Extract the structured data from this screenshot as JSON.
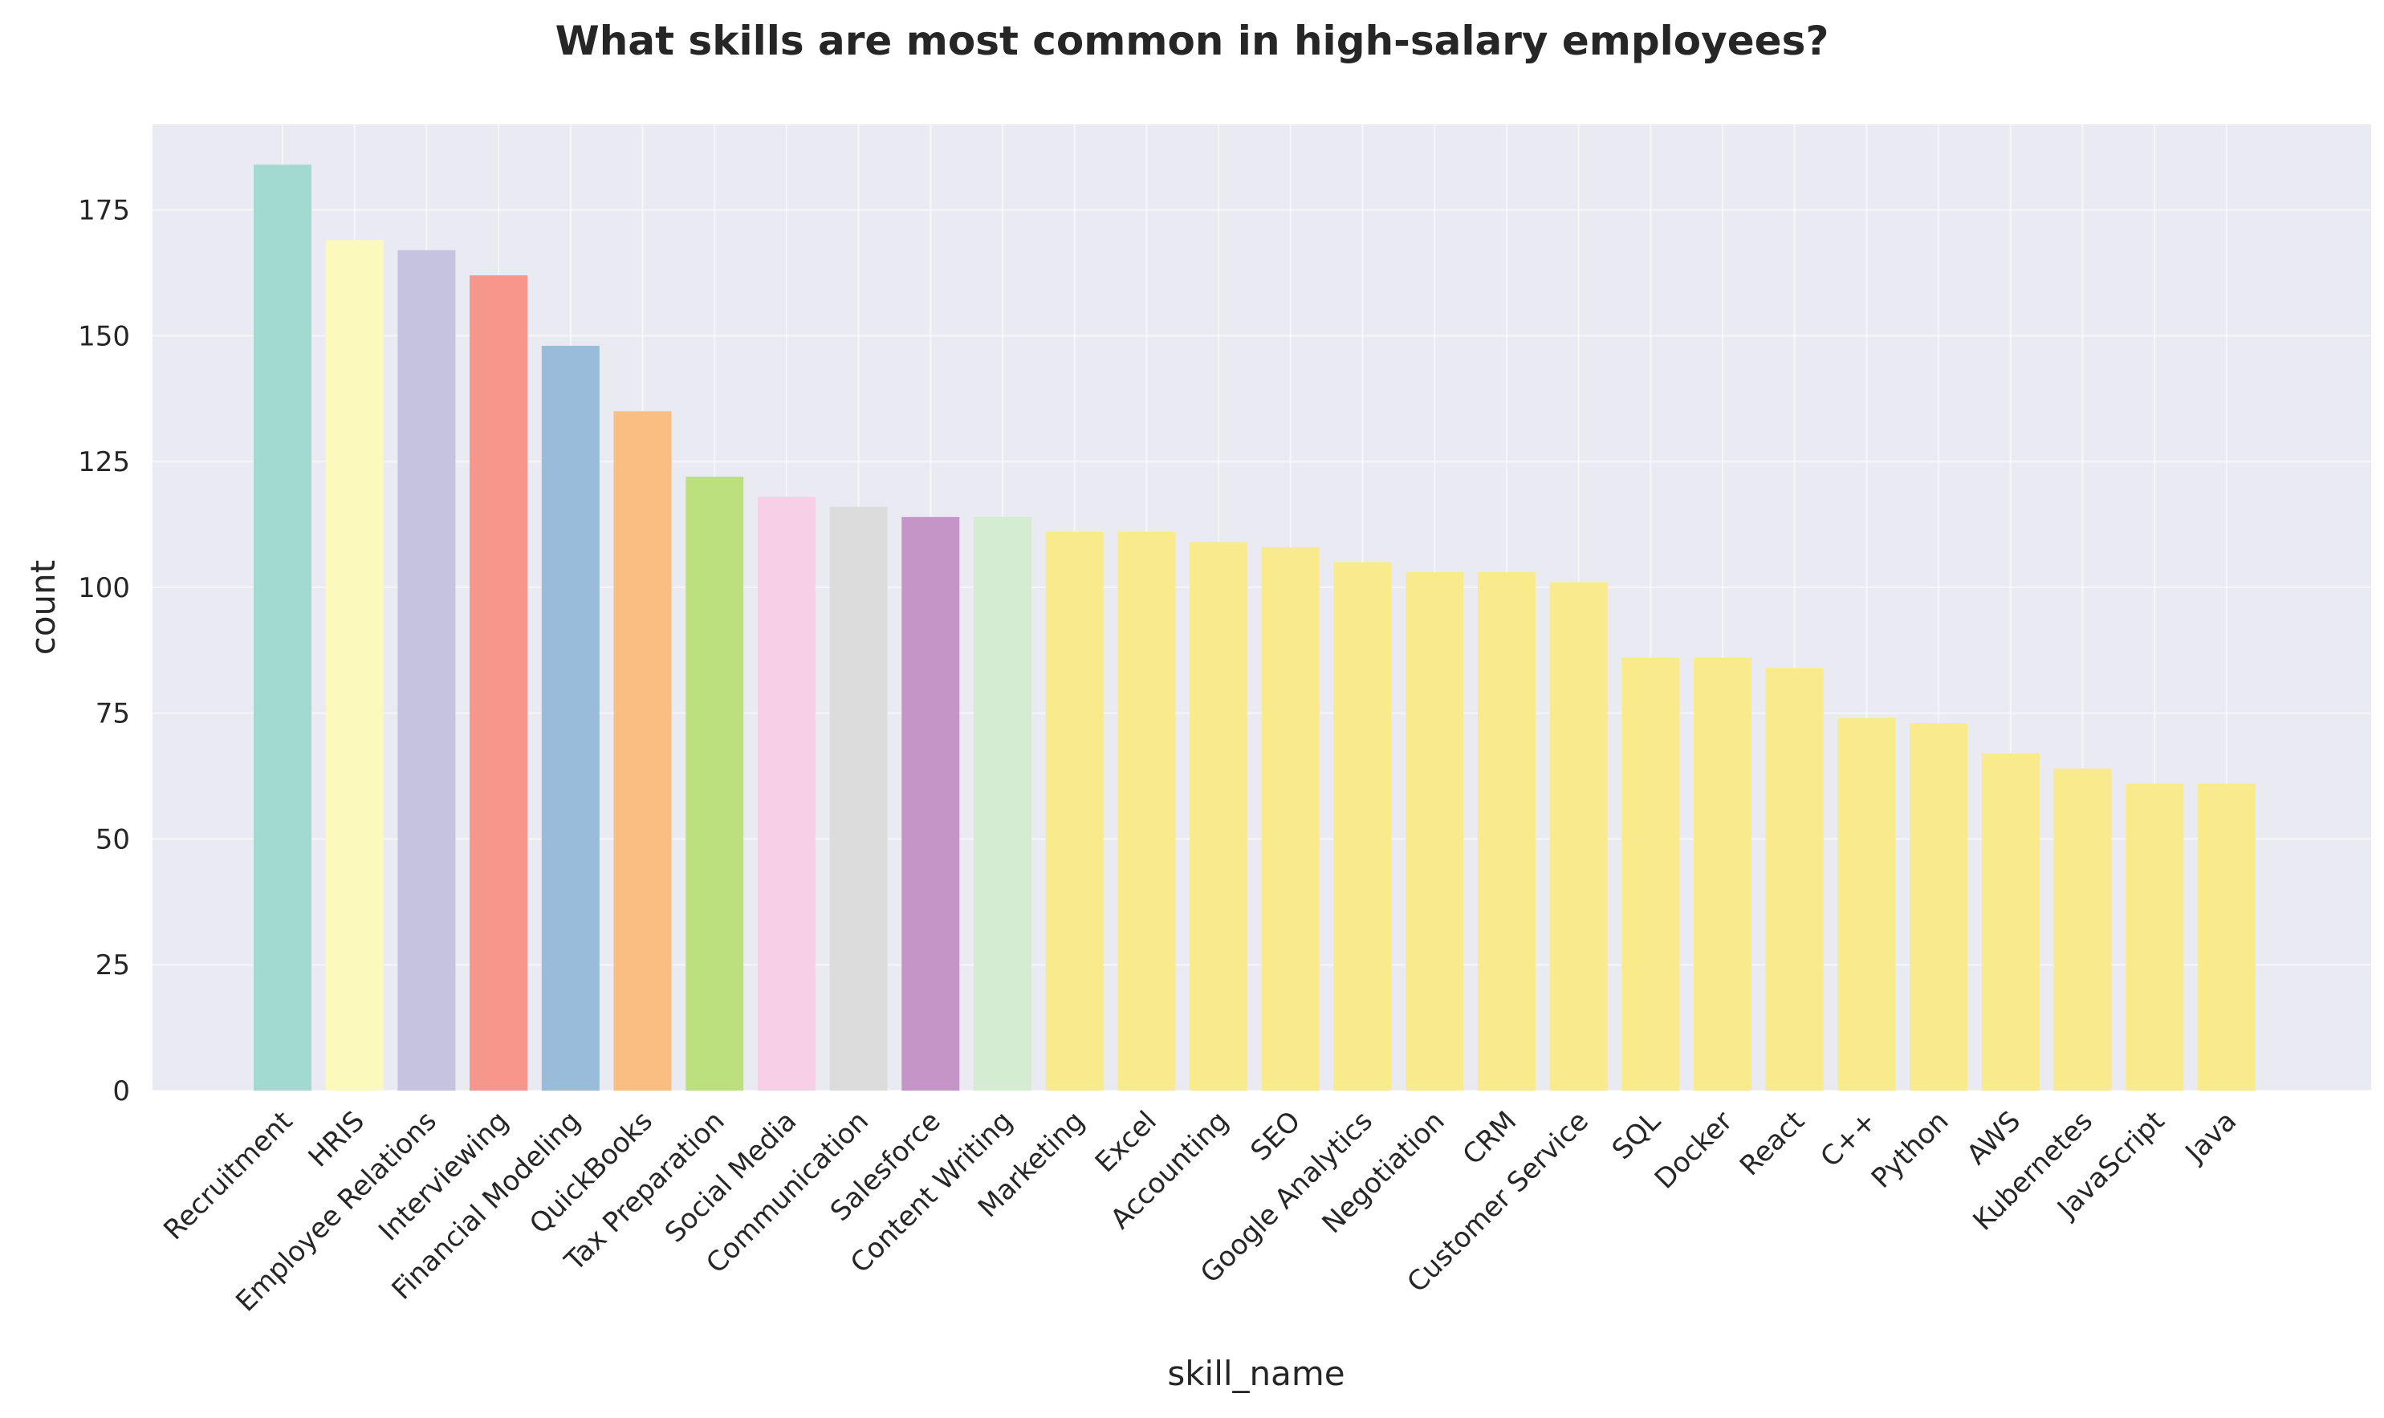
{
  "chart_data": {
    "type": "bar",
    "title": "What skills are most common in high-salary employees?",
    "xlabel": "skill_name",
    "ylabel": "count",
    "ylim": [
      0,
      192
    ],
    "yticks": [
      0,
      25,
      50,
      75,
      100,
      125,
      150,
      175
    ],
    "grid": true,
    "categories": [
      "Recruitment",
      "HRIS",
      "Employee Relations",
      "Interviewing",
      "Financial Modeling",
      "QuickBooks",
      "Tax Preparation",
      "Social Media",
      "Communication",
      "Salesforce",
      "Content Writing",
      "Marketing",
      "Excel",
      "Accounting",
      "SEO",
      "Google Analytics",
      "Negotiation",
      "CRM",
      "Customer Service",
      "SQL",
      "Docker",
      "React",
      "C++",
      "Python",
      "AWS",
      "Kubernetes",
      "JavaScript",
      "Java"
    ],
    "values": [
      184,
      169,
      167,
      162,
      148,
      135,
      122,
      118,
      116,
      114,
      114,
      111,
      111,
      109,
      108,
      105,
      103,
      103,
      101,
      86,
      86,
      84,
      74,
      73,
      67,
      64,
      61,
      61
    ],
    "colors": [
      "#a2d9d0",
      "#fbf9bc",
      "#c6c3e0",
      "#f7968b",
      "#98bcda",
      "#f9be80",
      "#bde07f",
      "#f7d0e7",
      "#dcdcdc",
      "#c595c7",
      "#d3ecd2",
      "#f9eb8b",
      "#f9eb8b",
      "#f9eb8b",
      "#f9eb8b",
      "#f9eb8b",
      "#f9eb8b",
      "#f9eb8b",
      "#f9eb8b",
      "#f9eb8b",
      "#f9eb8b",
      "#f9eb8b",
      "#f9eb8b",
      "#f9eb8b",
      "#f9eb8b",
      "#f9eb8b",
      "#f9eb8b",
      "#f9eb8b"
    ]
  }
}
